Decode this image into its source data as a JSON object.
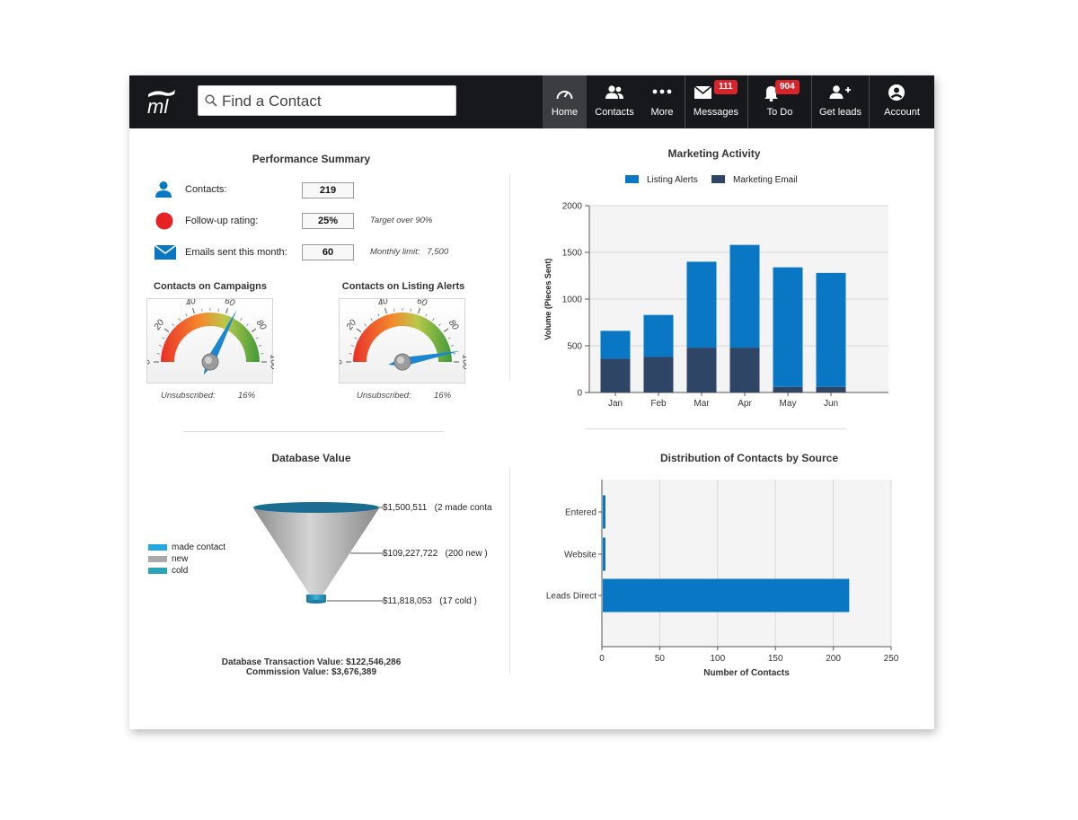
{
  "header": {
    "search_placeholder": "Find a Contact",
    "nav": [
      {
        "label": "Home",
        "icon": "speedometer-icon"
      },
      {
        "label": "Contacts",
        "icon": "people-icon"
      },
      {
        "label": "More",
        "icon": "dots-icon"
      },
      {
        "label": "Messages",
        "icon": "envelope-icon",
        "badge": "111"
      },
      {
        "label": "To Do",
        "icon": "bell-icon",
        "badge": "904"
      },
      {
        "label": "Get leads",
        "icon": "add-user-icon"
      },
      {
        "label": "Account",
        "icon": "account-icon"
      }
    ]
  },
  "performance": {
    "title": "Performance Summary",
    "rows": [
      {
        "label": "Contacts:",
        "value": "219",
        "note": ""
      },
      {
        "label": "Follow-up rating:",
        "value": "25%",
        "note": "Target over 90%"
      },
      {
        "label": "Emails sent this month:",
        "value": "60",
        "note": "Monthly limit:   7,500"
      }
    ]
  },
  "gauges": [
    {
      "title": "Contacts on Campaigns",
      "value_pct": 65,
      "unsub_label": "Unsubscribed:",
      "unsub_value": "16%"
    },
    {
      "title": "Contacts on Listing Alerts",
      "value_pct": 94,
      "unsub_label": "Unsubscribed:",
      "unsub_value": "16%"
    }
  ],
  "gauge_ticks": [
    "0",
    "20",
    "40",
    "60",
    "80",
    "100"
  ],
  "database": {
    "title": "Database Value",
    "legend": [
      "made contact",
      "new",
      "cold"
    ],
    "labels": [
      "$1,500,511   (2 made conta",
      "$109,227,722   (200 new )",
      "$11,818,053   (17 cold )"
    ],
    "transaction": "Database Transaction Value: $122,546,286",
    "commission": "Commission Value: $3,676,389"
  },
  "colors": {
    "blue": "#0a77c4",
    "navy": "#2f4565",
    "red": "#e52325",
    "badge": "#d9242b",
    "bar_dark": "#16181b"
  },
  "chart_data": [
    {
      "type": "bar",
      "title": "Marketing Activity",
      "stacked": true,
      "categories": [
        "Jan",
        "Feb",
        "Mar",
        "Apr",
        "May",
        "Jun"
      ],
      "series": [
        {
          "name": "Listing Alerts",
          "values": [
            300,
            450,
            920,
            1100,
            1280,
            1220
          ]
        },
        {
          "name": "Marketing Email",
          "values": [
            360,
            380,
            480,
            480,
            60,
            60
          ]
        }
      ],
      "ylabel": "Volume (Pieces Sent)",
      "ylim": [
        0,
        2000
      ],
      "yticks": [
        "0",
        "500",
        "1000",
        "1500",
        "2000"
      ],
      "legend": "top"
    },
    {
      "type": "bar",
      "orientation": "horizontal",
      "title": "Distribution of Contacts by Source",
      "categories": [
        "Entered",
        "Website",
        "Leads Direct"
      ],
      "values": [
        2,
        2,
        213
      ],
      "xlabel": "Number of Contacts",
      "xlim": [
        0,
        250
      ],
      "xticks": [
        "0",
        "50",
        "100",
        "150",
        "200",
        "250"
      ]
    }
  ]
}
